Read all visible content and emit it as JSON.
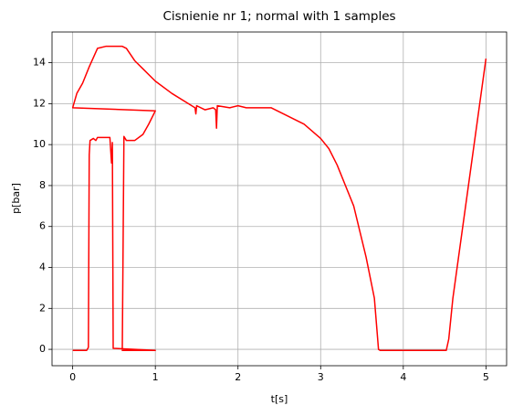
{
  "chart_data": {
    "type": "line",
    "title": "Cisnienie nr 1; normal with 1 samples",
    "xlabel": "t[s]",
    "ylabel": "p[bar]",
    "x": [
      0,
      0.17,
      0.19,
      0.2,
      0.21,
      0.25,
      0.28,
      0.3,
      0.45,
      0.47,
      0.48,
      0.49,
      1.0,
      0.6,
      0.62,
      0.65,
      0.75,
      0.85,
      0.92,
      1.0,
      0,
      0.05,
      0.12,
      0.2,
      0.3,
      0.4,
      0.6,
      0.65,
      0.75,
      0.85,
      1.0,
      1.2,
      1.4,
      1.48,
      1.49,
      1.5,
      1.6,
      1.7,
      1.73,
      1.74,
      1.75,
      1.9,
      2.0,
      2.1,
      2.4,
      2.5,
      2.7,
      2.8,
      3.0,
      3.1,
      3.2,
      3.4,
      3.55,
      3.65,
      3.7,
      3.72,
      4.52,
      4.55,
      4.6,
      5.0
    ],
    "series": [
      {
        "name": "p",
        "color": "#ff0000",
        "values": [
          -0.05,
          -0.05,
          0.1,
          9.5,
          10.2,
          10.3,
          10.2,
          10.35,
          10.35,
          9.1,
          10.1,
          0.05,
          -0.05,
          -0.05,
          10.4,
          10.2,
          10.2,
          10.5,
          11,
          11.65,
          11.8,
          12.5,
          13,
          13.8,
          14.7,
          14.8,
          14.8,
          14.7,
          14.1,
          13.7,
          13.1,
          12.5,
          12.0,
          11.8,
          11.5,
          11.9,
          11.7,
          11.8,
          11.7,
          10.8,
          11.9,
          11.8,
          11.9,
          11.8,
          11.8,
          11.6,
          11.2,
          11,
          10.3,
          9.8,
          9,
          7,
          4.5,
          2.5,
          0,
          -0.05,
          -0.05,
          0.5,
          2.5,
          14.2
        ]
      }
    ],
    "xlim": [
      -0.25,
      5.25
    ],
    "ylim": [
      -0.8,
      15.5
    ],
    "xticks": [
      0,
      1,
      2,
      3,
      4,
      5
    ],
    "yticks": [
      0,
      2,
      4,
      6,
      8,
      10,
      12,
      14
    ],
    "grid": true
  }
}
